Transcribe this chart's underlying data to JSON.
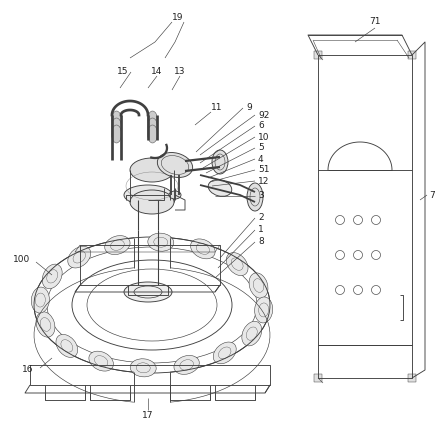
{
  "bg_color": "#ffffff",
  "lc": "#404040",
  "label_color": "#222222",
  "figsize": [
    4.43,
    4.34
  ],
  "dpi": 100,
  "lw": 0.65,
  "label_fs": 6.5
}
